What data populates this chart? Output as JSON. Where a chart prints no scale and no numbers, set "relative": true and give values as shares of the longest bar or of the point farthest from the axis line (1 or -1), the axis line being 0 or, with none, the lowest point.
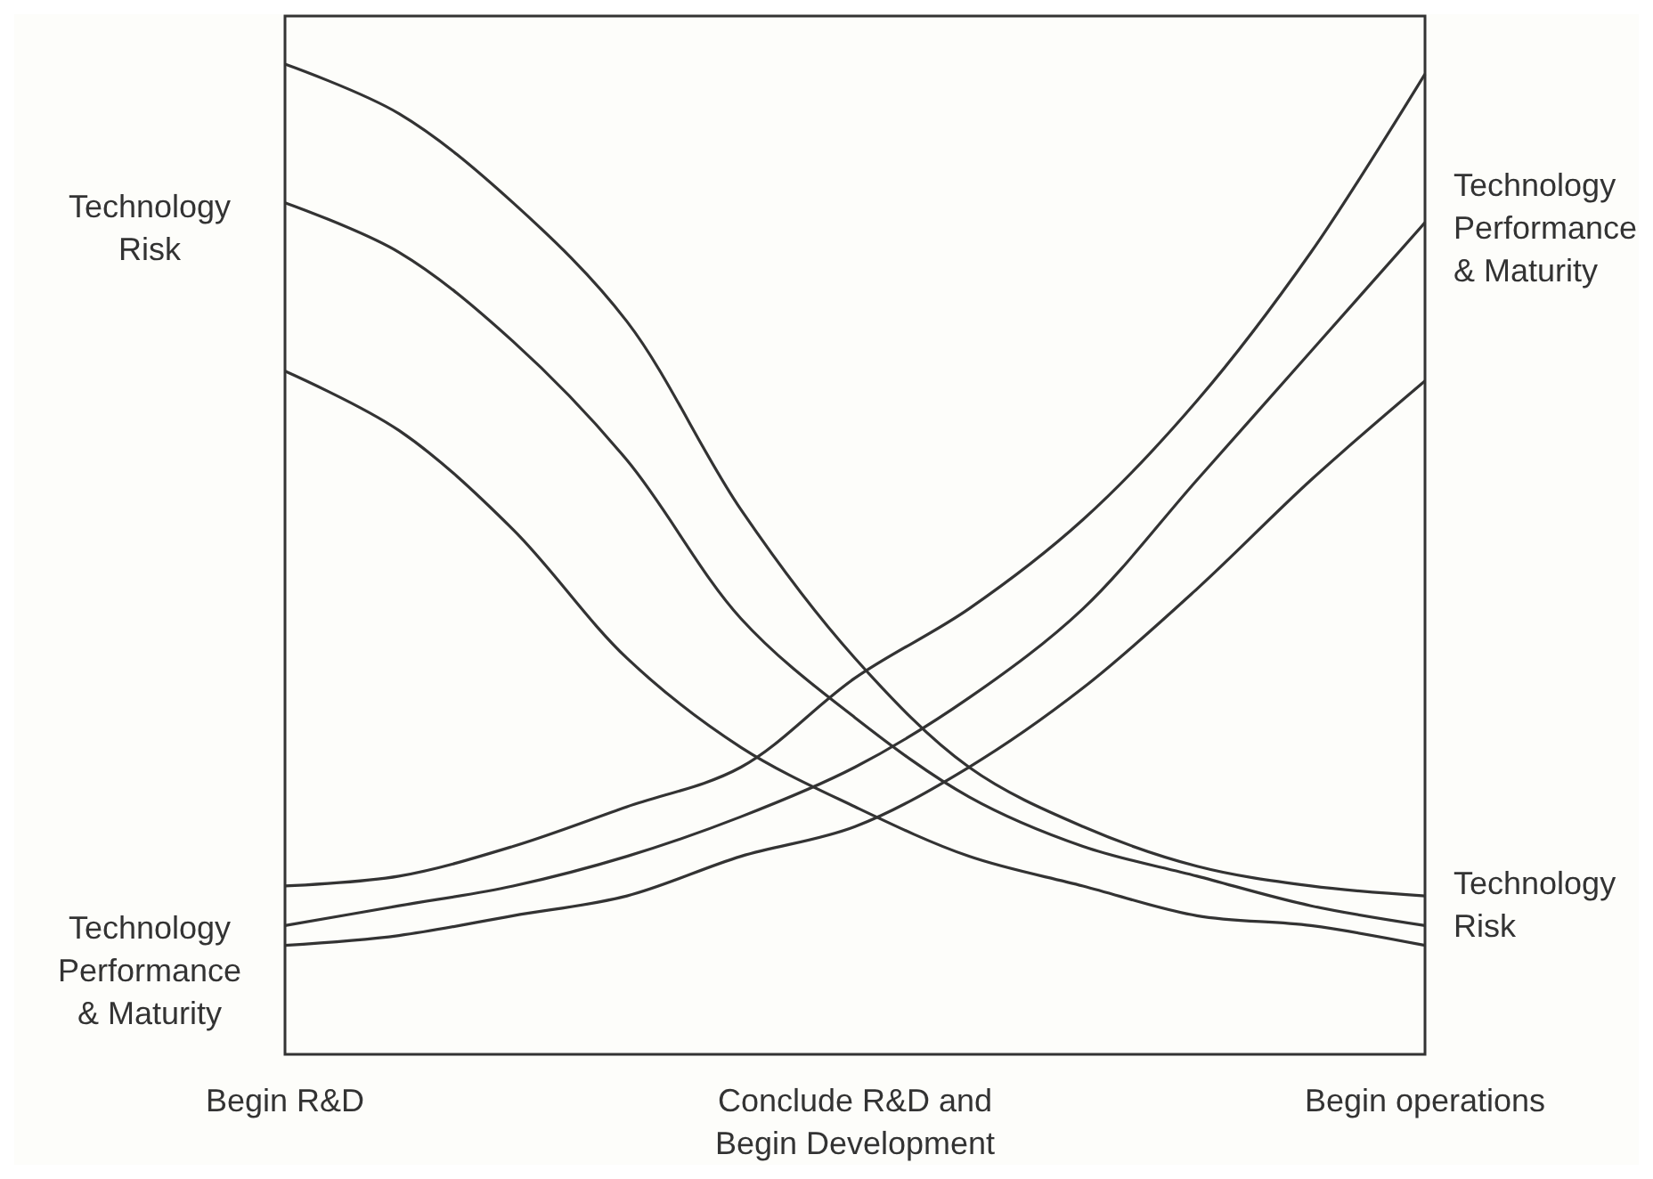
{
  "chart_data": {
    "type": "line",
    "relative": true,
    "categories": [
      "Begin R&D",
      null,
      null,
      null,
      null,
      "Conclude R&D and Begin Development",
      null,
      null,
      null,
      null,
      "Begin operations"
    ],
    "series": [
      {
        "color": "#333333",
        "values": [
          1,
          0.95,
          0.86,
          0.74,
          0.55,
          0.4,
          0.29,
          0.23,
          0.19,
          0.17,
          0.16
        ]
      },
      {
        "color": "#333333",
        "values": [
          0.86,
          0.81,
          0.72,
          0.6,
          0.44,
          0.34,
          0.26,
          0.21,
          0.18,
          0.15,
          0.13
        ]
      },
      {
        "color": "#333333",
        "values": [
          0.69,
          0.63,
          0.53,
          0.4,
          0.31,
          0.25,
          0.2,
          0.17,
          0.14,
          0.13,
          0.11
        ]
      },
      {
        "color": "#333333",
        "values": [
          0.17,
          0.18,
          0.21,
          0.25,
          0.29,
          0.38,
          0.45,
          0.54,
          0.66,
          0.81,
          0.99
        ]
      },
      {
        "color": "#333333",
        "values": [
          0.13,
          0.15,
          0.17,
          0.2,
          0.24,
          0.29,
          0.36,
          0.45,
          0.58,
          0.71,
          0.84
        ]
      },
      {
        "color": "#333333",
        "values": [
          0.11,
          0.12,
          0.14,
          0.16,
          0.2,
          0.23,
          0.29,
          0.37,
          0.47,
          0.58,
          0.68
        ]
      }
    ],
    "annotations": [
      "Technology Risk",
      "Technology Performance & Maturity",
      "Technology Performance & Maturity",
      "Technology Risk"
    ],
    "marker": "none",
    "line_style": "solid"
  }
}
